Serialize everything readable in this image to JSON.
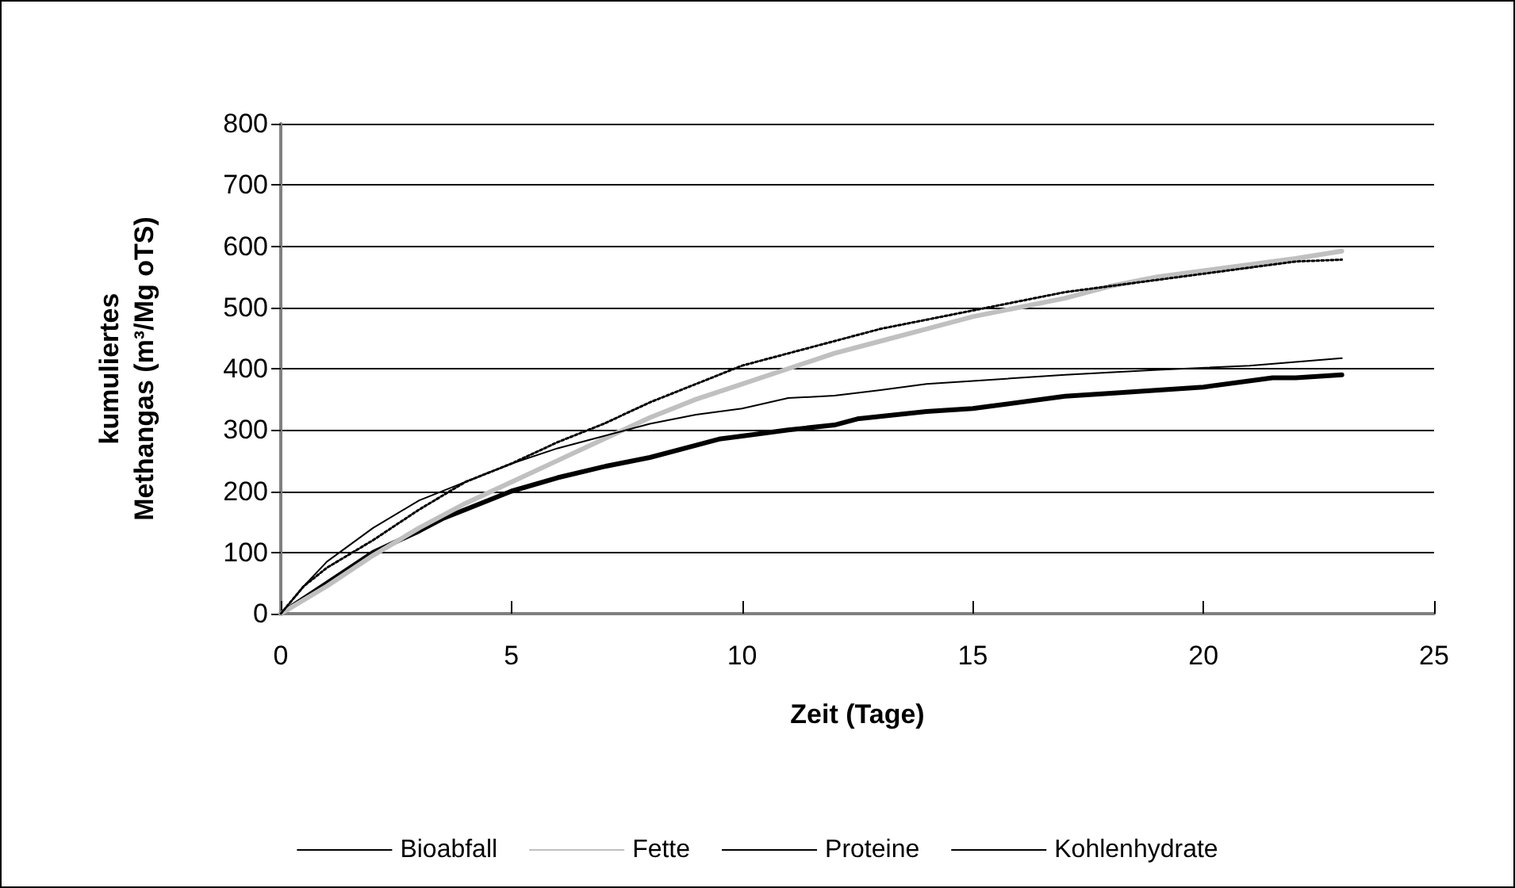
{
  "chart_data": {
    "type": "line",
    "xlabel": "Zeit (Tage)",
    "ylabel": "kumuliertes\nMethangas (m³/Mg oTS)",
    "xlim": [
      0,
      25
    ],
    "xticks": [
      0,
      5,
      10,
      15,
      20,
      25
    ],
    "ylim": [
      0,
      800
    ],
    "yticks": [
      0,
      100,
      200,
      300,
      400,
      500,
      600,
      700,
      800
    ],
    "grid": "y",
    "legend": "bottom",
    "marker": "none",
    "series": [
      {
        "name": "Bioabfall",
        "color": "#000000",
        "line_style": "solid",
        "x": [
          0,
          1,
          2,
          3,
          3.5,
          4,
          5,
          6,
          7,
          8,
          9,
          9.5,
          10,
          11,
          12,
          12.5,
          14,
          15,
          17,
          18,
          20,
          21.5,
          22,
          23
        ],
        "values": [
          0,
          50,
          100,
          135,
          155,
          170,
          200,
          222,
          240,
          255,
          275,
          285,
          290,
          300,
          308,
          318,
          330,
          335,
          355,
          360,
          370,
          385,
          385,
          390
        ]
      },
      {
        "name": "Fette",
        "color": "#c0c0c0",
        "line_style": "solid",
        "x": [
          0,
          1,
          2,
          3,
          4,
          5,
          6,
          7,
          8,
          9,
          10,
          11,
          12,
          13,
          14,
          15,
          16,
          17,
          18,
          19,
          20,
          21,
          22,
          23
        ],
        "values": [
          0,
          45,
          95,
          140,
          180,
          215,
          250,
          285,
          320,
          350,
          375,
          400,
          425,
          445,
          465,
          485,
          500,
          515,
          535,
          550,
          560,
          570,
          580,
          592
        ]
      },
      {
        "name": "Proteine",
        "color": "#000000",
        "line_style": "dotted",
        "x": [
          0,
          0.5,
          1,
          2,
          3,
          4,
          5,
          6,
          7,
          8,
          9,
          10,
          11,
          12,
          13,
          14,
          15,
          16,
          17,
          18,
          19,
          20,
          21,
          22,
          23
        ],
        "values": [
          0,
          45,
          75,
          120,
          170,
          215,
          245,
          280,
          310,
          345,
          375,
          405,
          425,
          445,
          465,
          480,
          495,
          510,
          525,
          535,
          545,
          555,
          565,
          575,
          578
        ]
      },
      {
        "name": "Kohlenhydrate",
        "color": "#000000",
        "line_style": "solid",
        "x": [
          0,
          0.5,
          1,
          2,
          3,
          4,
          5,
          6,
          7,
          8,
          9,
          10,
          11,
          12,
          13,
          14,
          15,
          17,
          19,
          21,
          23
        ],
        "values": [
          0,
          45,
          85,
          140,
          185,
          215,
          245,
          270,
          290,
          310,
          325,
          335,
          352,
          356,
          365,
          375,
          380,
          390,
          398,
          405,
          417
        ]
      }
    ]
  }
}
